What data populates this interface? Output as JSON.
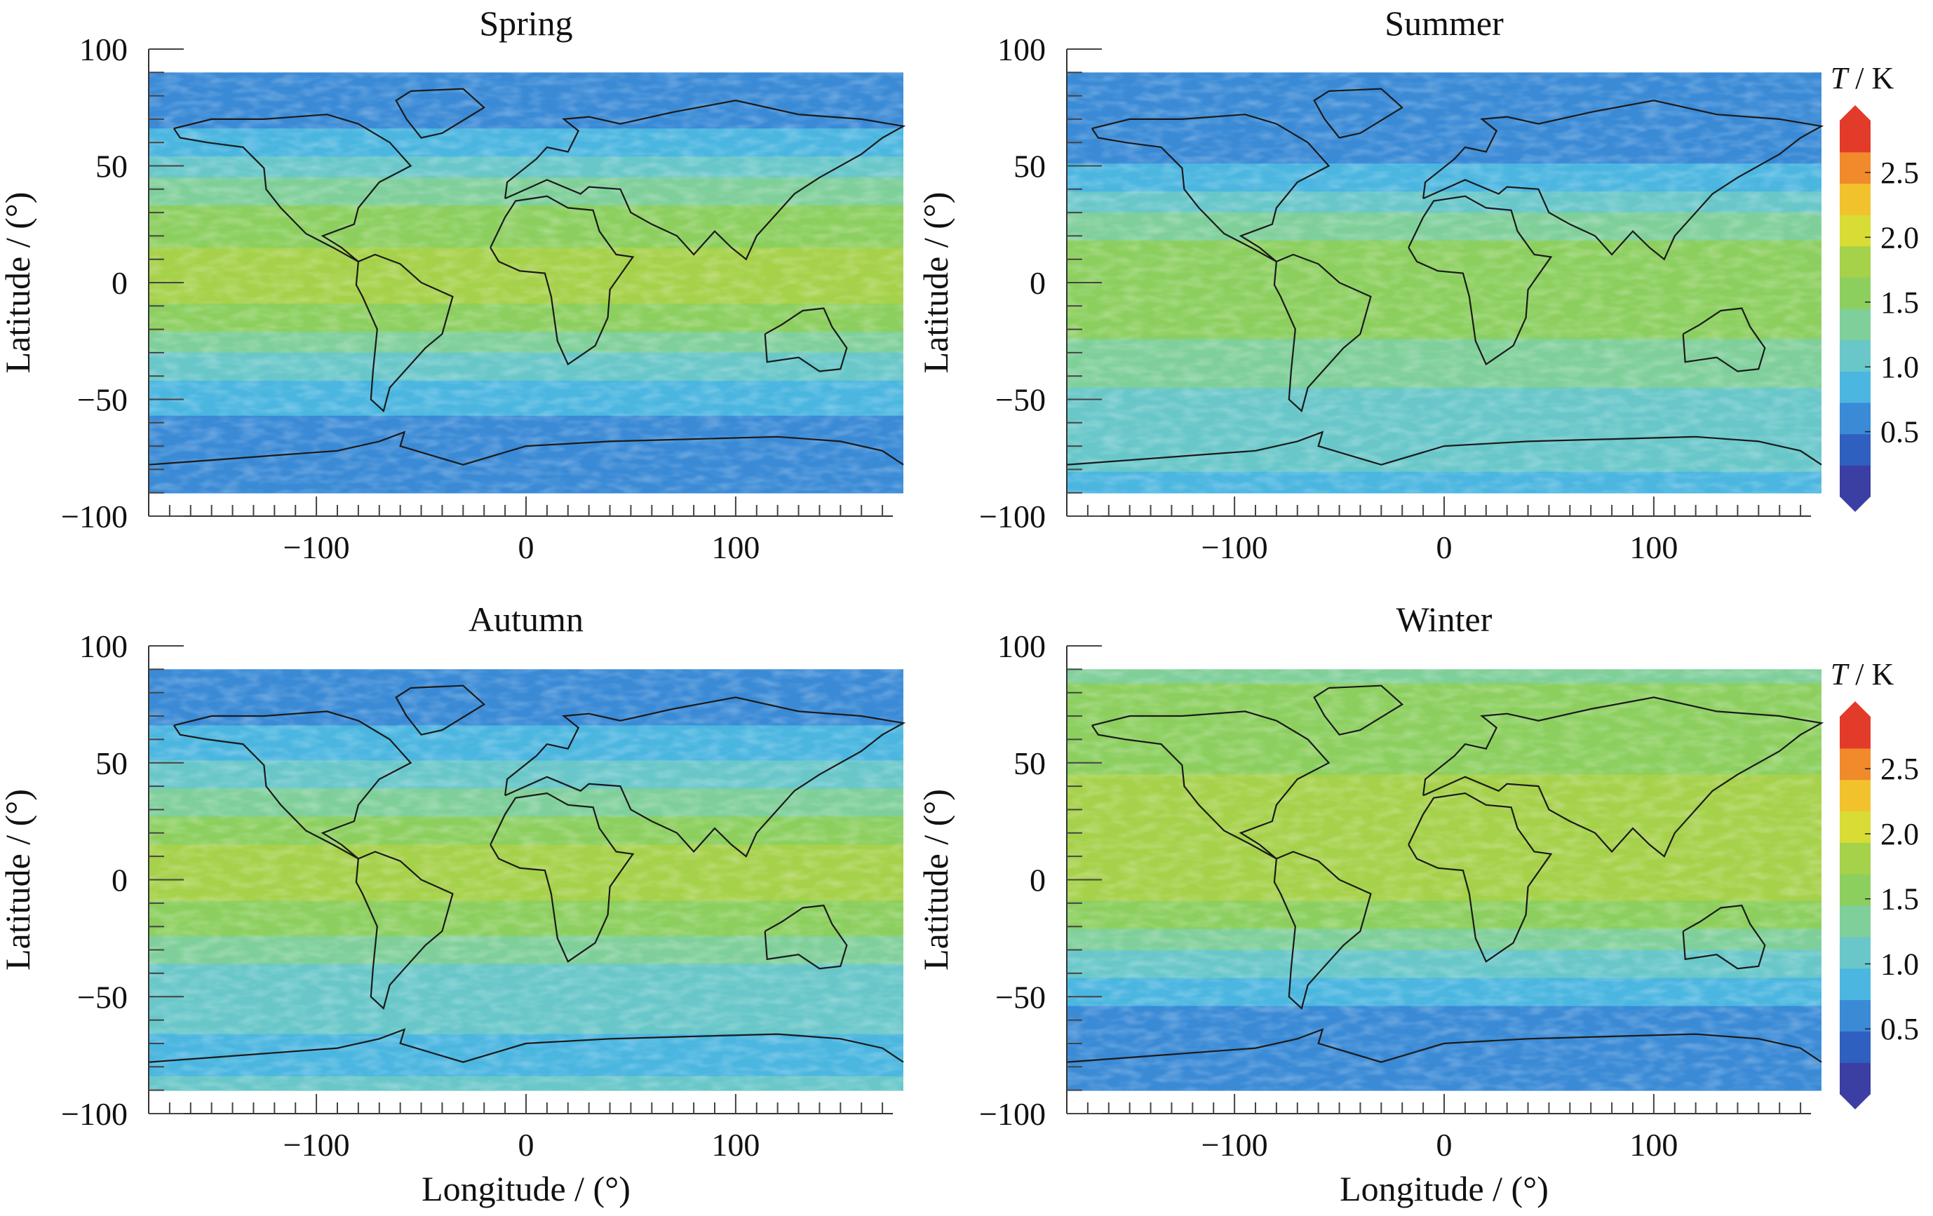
{
  "chart_data": [
    {
      "type": "heatmap",
      "title": "Spring",
      "xlabel": "",
      "ylabel": "Latitude / (°)",
      "xlim": [
        -180,
        180
      ],
      "ylim": [
        -100,
        100
      ],
      "xticks": [
        "−100",
        "0",
        "100"
      ],
      "yticks": [
        "100",
        "50",
        "0",
        "−50",
        "−100"
      ],
      "zonal_profile": {
        "latitude": [
          90,
          75,
          60,
          45,
          30,
          15,
          0,
          -15,
          -30,
          -45,
          -60,
          -75,
          -90
        ],
        "T_K": [
          0.6,
          0.6,
          0.8,
          1.2,
          1.5,
          1.7,
          1.9,
          1.6,
          1.2,
          0.9,
          0.7,
          0.5,
          0.6
        ]
      }
    },
    {
      "type": "heatmap",
      "title": "Summer",
      "xlabel": "",
      "ylabel": "Latitude / (°)",
      "xlim": [
        -180,
        180
      ],
      "ylim": [
        -100,
        100
      ],
      "xticks": [
        "−100",
        "0",
        "100"
      ],
      "yticks": [
        "100",
        "50",
        "0",
        "−50",
        "−100"
      ],
      "zonal_profile": {
        "latitude": [
          90,
          75,
          60,
          45,
          30,
          15,
          0,
          -15,
          -30,
          -45,
          -60,
          -75,
          -90
        ],
        "T_K": [
          0.5,
          0.5,
          0.6,
          0.8,
          1.2,
          1.5,
          1.7,
          1.6,
          1.3,
          1.2,
          1.2,
          1.0,
          0.9
        ]
      }
    },
    {
      "type": "heatmap",
      "title": "Autumn",
      "xlabel": "Longitude / (°)",
      "ylabel": "Latitude / (°)",
      "xlim": [
        -180,
        180
      ],
      "ylim": [
        -100,
        100
      ],
      "xticks": [
        "−100",
        "0",
        "100"
      ],
      "yticks": [
        "100",
        "50",
        "0",
        "−50",
        "−100"
      ],
      "zonal_profile": {
        "latitude": [
          90,
          75,
          60,
          45,
          30,
          15,
          0,
          -15,
          -30,
          -45,
          -60,
          -75,
          -90
        ],
        "T_K": [
          0.6,
          0.6,
          0.8,
          1.1,
          1.4,
          1.7,
          1.9,
          1.6,
          1.3,
          1.1,
          1.0,
          0.9,
          1.0
        ]
      }
    },
    {
      "type": "heatmap",
      "title": "Winter",
      "xlabel": "Longitude / (°)",
      "ylabel": "Latitude / (°)",
      "xlim": [
        -180,
        180
      ],
      "ylim": [
        -100,
        100
      ],
      "xticks": [
        "−100",
        "0",
        "100"
      ],
      "yticks": [
        "100",
        "50",
        "0",
        "−50",
        "−100"
      ],
      "zonal_profile": {
        "latitude": [
          90,
          75,
          60,
          45,
          30,
          15,
          0,
          -15,
          -30,
          -45,
          -60,
          -75,
          -90
        ],
        "T_K": [
          1.4,
          1.5,
          1.6,
          1.7,
          1.8,
          1.8,
          1.9,
          1.6,
          1.2,
          0.9,
          0.6,
          0.5,
          0.6
        ]
      }
    }
  ],
  "colorbar": {
    "label_symbol": "T",
    "label_unit": " / K",
    "ticks": [
      "0.5",
      "1.0",
      "1.5",
      "2.0",
      "2.5"
    ],
    "tick_values": [
      0.5,
      1.0,
      1.5,
      2.0,
      2.5
    ],
    "range": [
      0.0,
      2.9
    ],
    "colors": [
      "#3b3fa3",
      "#2f5fbf",
      "#3a8ad6",
      "#4bb6e0",
      "#69c7c9",
      "#7fcf9a",
      "#8ccf5f",
      "#a6d14a",
      "#d8dc35",
      "#f2c22c",
      "#f08a2a",
      "#e23b2a"
    ]
  }
}
